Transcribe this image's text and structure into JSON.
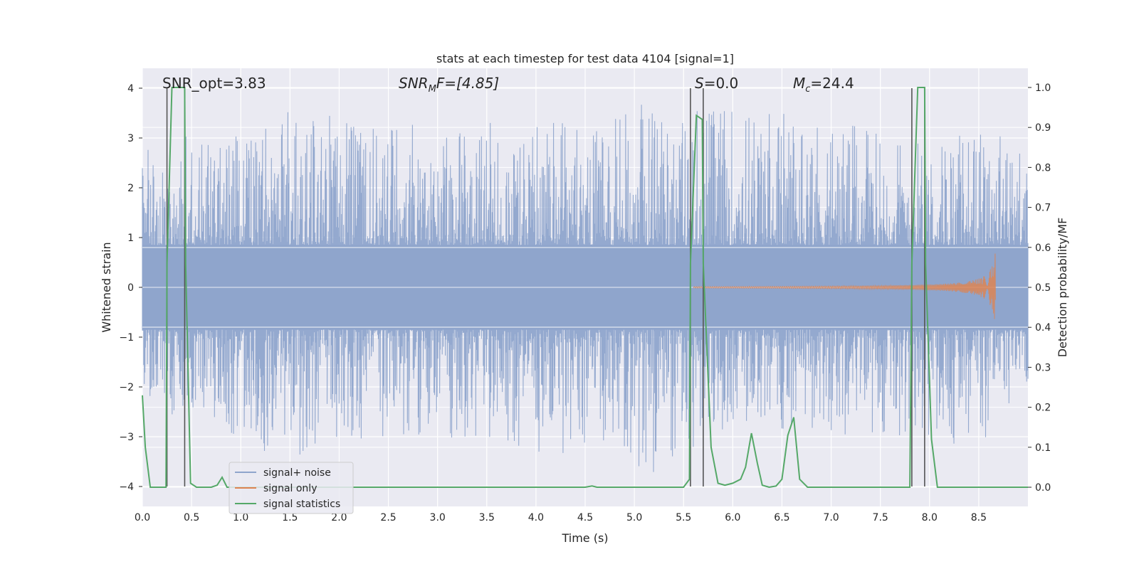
{
  "chart_data": {
    "type": "line",
    "title": "stats at each timestep for test data 4104 [signal=1]",
    "xlabel": "Time (s)",
    "ylabel": "Whitened strain",
    "y2label": "Detection probability/MF",
    "xlim": [
      0,
      9.0
    ],
    "ylim": [
      -4.4,
      4.4
    ],
    "y2lim": [
      -0.048,
      1.048
    ],
    "xticks": [
      "0.0",
      "0.5",
      "1.0",
      "1.5",
      "2.0",
      "2.5",
      "3.0",
      "3.5",
      "4.0",
      "4.5",
      "5.0",
      "5.5",
      "6.0",
      "6.5",
      "7.0",
      "7.5",
      "8.0",
      "8.5"
    ],
    "yticks": [
      "4",
      "3",
      "2",
      "1",
      "0",
      "−1",
      "−2",
      "−3",
      "−4"
    ],
    "y2ticks": [
      "1.0",
      "0.9",
      "0.8",
      "0.7",
      "0.6",
      "0.5",
      "0.4",
      "0.3",
      "0.2",
      "0.1",
      "0.0"
    ],
    "grid": true,
    "legend_position": "lower-left",
    "annotations": {
      "snr_opt": "SNR_opt=3.83",
      "snr_mf_base": "SNR",
      "snr_mf_sub": "M",
      "snr_mf_rest": "F=[4.85]",
      "s_italic": "S",
      "s_rest": "=0.0",
      "mc_base": "M",
      "mc_sub": "c",
      "mc_rest": "=24.4"
    },
    "vertical_markers_x": [
      0.25,
      0.43,
      5.57,
      5.7,
      7.82,
      7.95
    ],
    "series": [
      {
        "name": "signal+ noise",
        "color": "#8fa5cc",
        "envelope_pos": [
          [
            0,
            2.8
          ],
          [
            0.25,
            3.0
          ],
          [
            0.43,
            3.2
          ],
          [
            0.72,
            2.9
          ],
          [
            0.88,
            3.2
          ],
          [
            1.4,
            3.6
          ],
          [
            2.35,
            3.35
          ],
          [
            4.45,
            3.3
          ],
          [
            5.28,
            4.0
          ],
          [
            5.55,
            3.3
          ],
          [
            5.65,
            3.7
          ],
          [
            6.66,
            3.6
          ],
          [
            7.3,
            3.2
          ],
          [
            7.95,
            3.0
          ],
          [
            8.6,
            3.2
          ],
          [
            9.0,
            2.8
          ]
        ],
        "envelope_neg": [
          [
            0,
            -2.0
          ],
          [
            0.22,
            -2.8
          ],
          [
            0.45,
            -2.4
          ],
          [
            0.73,
            -2.7
          ],
          [
            1.02,
            -3.1
          ],
          [
            1.4,
            -3.5
          ],
          [
            2.4,
            -3.0
          ],
          [
            3.05,
            -3.0
          ],
          [
            5.33,
            -3.8
          ],
          [
            5.73,
            -3.1
          ],
          [
            6.08,
            -2.8
          ],
          [
            7.3,
            -3.0
          ],
          [
            8.2,
            -3.2
          ],
          [
            8.47,
            -3.3
          ],
          [
            9.0,
            -2.0
          ]
        ]
      },
      {
        "name": "signal only",
        "color": "#dd8452",
        "chirp_x_range": [
          5.6,
          8.67
        ],
        "chirp_peak": 0.78
      },
      {
        "name": "signal statistics",
        "color": "#55a868",
        "x": [
          0.0,
          0.03,
          0.08,
          0.18,
          0.24,
          0.25,
          0.3,
          0.43,
          0.44,
          0.49,
          0.55,
          0.7,
          0.76,
          0.81,
          0.86,
          1.0,
          4.5,
          4.57,
          4.62,
          5.0,
          5.5,
          5.56,
          5.57,
          5.63,
          5.69,
          5.7,
          5.78,
          5.85,
          5.92,
          6.0,
          6.08,
          6.13,
          6.19,
          6.25,
          6.3,
          6.37,
          6.44,
          6.5,
          6.56,
          6.62,
          6.68,
          6.76,
          7.0,
          7.8,
          7.82,
          7.88,
          7.95,
          7.96,
          8.02,
          8.08,
          9.0
        ],
        "y": [
          0.23,
          0.1,
          0.0,
          0.0,
          0.0,
          0.56,
          1.0,
          1.0,
          0.56,
          0.01,
          0.0,
          0.0,
          0.005,
          0.025,
          0.0,
          0.0,
          0.0,
          0.003,
          0.0,
          0.0,
          0.0,
          0.02,
          0.56,
          0.93,
          0.92,
          0.56,
          0.1,
          0.01,
          0.005,
          0.01,
          0.02,
          0.05,
          0.135,
          0.06,
          0.005,
          0.0,
          0.003,
          0.02,
          0.13,
          0.175,
          0.02,
          0.0,
          0.0,
          0.0,
          0.56,
          1.0,
          1.0,
          0.56,
          0.12,
          0.0,
          0.0
        ]
      }
    ]
  }
}
